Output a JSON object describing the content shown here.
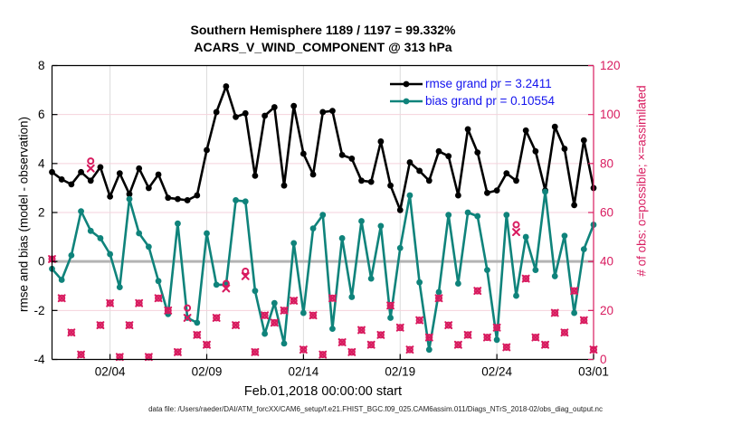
{
  "figure": {
    "title_line1": "Southern Hemisphere 1189 / 1197 = 99.332%",
    "title_line2": "ACARS_V_WIND_COMPONENT @ 313 hPa",
    "xlabel": "Feb.01,2018 00:00:00 start",
    "ylabel_left": "rmse and bias (model - observation)",
    "ylabel_right": "# of obs: o=possible; ×=assimilated",
    "footer": "data file: /Users/raeder/DAI/ATM_forcXX/CAM6_setup/f.e21.FHIST_BGC.f09_025.CAM6assim.011/Diags_NTrS_2018-02/obs_diag_output.nc",
    "stats": {
      "possible_total": 1197,
      "assimilated_total": 1189,
      "assimilated_pct": "99.332%"
    },
    "legend": [
      {
        "label": "rmse grand pr = 3.2411",
        "series": "rmse"
      },
      {
        "label": "bias grand pr = 0.10554",
        "series": "bias"
      }
    ]
  },
  "colors": {
    "rmse": "#000000",
    "bias": "#0f837b",
    "obs": "#d81b5f",
    "legend_text": "#1414ee",
    "zero_line": "#b3b3b3",
    "grid_h": "#f5d2dc",
    "grid_v": "#dcdcdc",
    "axis_left": "#000000",
    "axis_right": "#d81b5f"
  },
  "chart_data": {
    "type": "line",
    "title": "Southern Hemisphere 1189 / 1197 = 99.332% | ACARS_V_WIND_COMPONENT @ 313 hPa",
    "x_unit": "days since Feb.01,2018 00:00:00",
    "x_range": [
      0,
      28
    ],
    "left_axis": {
      "label": "rmse and bias (model - observation)",
      "min": -4,
      "max": 8,
      "ticks": [
        8,
        6,
        4,
        2,
        0,
        -2,
        -4
      ]
    },
    "right_axis": {
      "label": "# of obs: o=possible; x=assimilated",
      "min": 0,
      "max": 120,
      "ticks": [
        0,
        20,
        40,
        60,
        80,
        100,
        120
      ]
    },
    "x_ticks": [
      {
        "day": 3,
        "label": "02/04"
      },
      {
        "day": 8,
        "label": "02/09"
      },
      {
        "day": 13,
        "label": "02/14"
      },
      {
        "day": 18,
        "label": "02/19"
      },
      {
        "day": 23,
        "label": "02/24"
      },
      {
        "day": 28,
        "label": "03/01"
      }
    ],
    "zero_line": 0,
    "grid": true,
    "legend_position": "top-right-inside",
    "x": [
      0,
      0.5,
      1,
      1.5,
      2,
      2.5,
      3,
      3.5,
      4,
      4.5,
      5,
      5.5,
      6,
      6.5,
      7,
      7.5,
      8,
      8.5,
      9,
      9.5,
      10,
      10.5,
      11,
      11.5,
      12,
      12.5,
      13,
      13.5,
      14,
      14.5,
      15,
      15.5,
      16,
      16.5,
      17,
      17.5,
      18,
      18.5,
      19,
      19.5,
      20,
      20.5,
      21,
      21.5,
      22,
      22.5,
      23,
      23.5,
      24,
      24.5,
      25,
      25.5,
      26,
      26.5,
      27,
      27.5,
      28
    ],
    "series": [
      {
        "name": "rmse",
        "axis": "left",
        "marker": "filled-circle",
        "grand_value": 3.2411,
        "values": [
          3.65,
          3.35,
          3.15,
          3.65,
          3.3,
          3.85,
          2.65,
          3.6,
          2.75,
          3.8,
          3.0,
          3.55,
          2.6,
          2.55,
          2.5,
          2.7,
          4.55,
          6.1,
          7.15,
          5.9,
          6.05,
          3.5,
          5.95,
          6.3,
          3.1,
          6.35,
          4.4,
          3.55,
          6.1,
          6.15,
          4.35,
          4.2,
          3.3,
          3.25,
          4.9,
          3.1,
          2.1,
          4.05,
          3.7,
          3.3,
          4.5,
          4.3,
          2.7,
          5.4,
          4.45,
          2.8,
          2.9,
          3.6,
          3.3,
          5.35,
          4.5,
          2.9,
          5.5,
          4.6,
          2.3,
          4.95,
          3.0
        ]
      },
      {
        "name": "bias",
        "axis": "left",
        "marker": "filled-circle",
        "grand_value": 0.10554,
        "values": [
          -0.3,
          -0.75,
          0.25,
          2.05,
          1.25,
          0.95,
          0.3,
          -1.05,
          2.55,
          1.15,
          0.6,
          -0.8,
          -2.15,
          1.55,
          -2.3,
          -2.5,
          1.15,
          -0.95,
          -0.95,
          2.5,
          2.45,
          -1.2,
          -2.95,
          -1.7,
          -3.35,
          0.75,
          -2.1,
          1.35,
          1.9,
          -2.75,
          0.95,
          -1.45,
          1.65,
          -0.7,
          1.45,
          -2.3,
          0.55,
          2.7,
          -0.85,
          -3.6,
          -1.25,
          1.9,
          -0.9,
          2.0,
          1.85,
          -0.35,
          -3.2,
          1.9,
          -1.4,
          1.0,
          -0.35,
          2.85,
          -0.6,
          1.05,
          -2.1,
          0.5,
          1.5
        ]
      },
      {
        "name": "possible_obs",
        "axis": "right",
        "marker": "o",
        "values": [
          41,
          25,
          11,
          2,
          81,
          14,
          23,
          1,
          14,
          23,
          1,
          25,
          20,
          3,
          21,
          10,
          6,
          17,
          31,
          14,
          36,
          3,
          18,
          15,
          20,
          24,
          4,
          18,
          2,
          25,
          7,
          3,
          12,
          6,
          10,
          22,
          13,
          4,
          16,
          9,
          25,
          14,
          6,
          10,
          28,
          9,
          13,
          5,
          55,
          33,
          9,
          6,
          19,
          11,
          28,
          16,
          4
        ]
      },
      {
        "name": "assimilated_obs",
        "axis": "right",
        "marker": "x",
        "values": [
          41,
          25,
          11,
          2,
          78,
          14,
          23,
          1,
          14,
          23,
          1,
          25,
          20,
          3,
          17,
          10,
          6,
          17,
          29,
          14,
          34,
          3,
          18,
          15,
          20,
          24,
          4,
          18,
          2,
          25,
          7,
          3,
          12,
          6,
          10,
          22,
          13,
          4,
          16,
          9,
          25,
          14,
          6,
          10,
          28,
          9,
          13,
          5,
          52,
          33,
          9,
          6,
          19,
          11,
          28,
          16,
          4
        ]
      }
    ]
  }
}
